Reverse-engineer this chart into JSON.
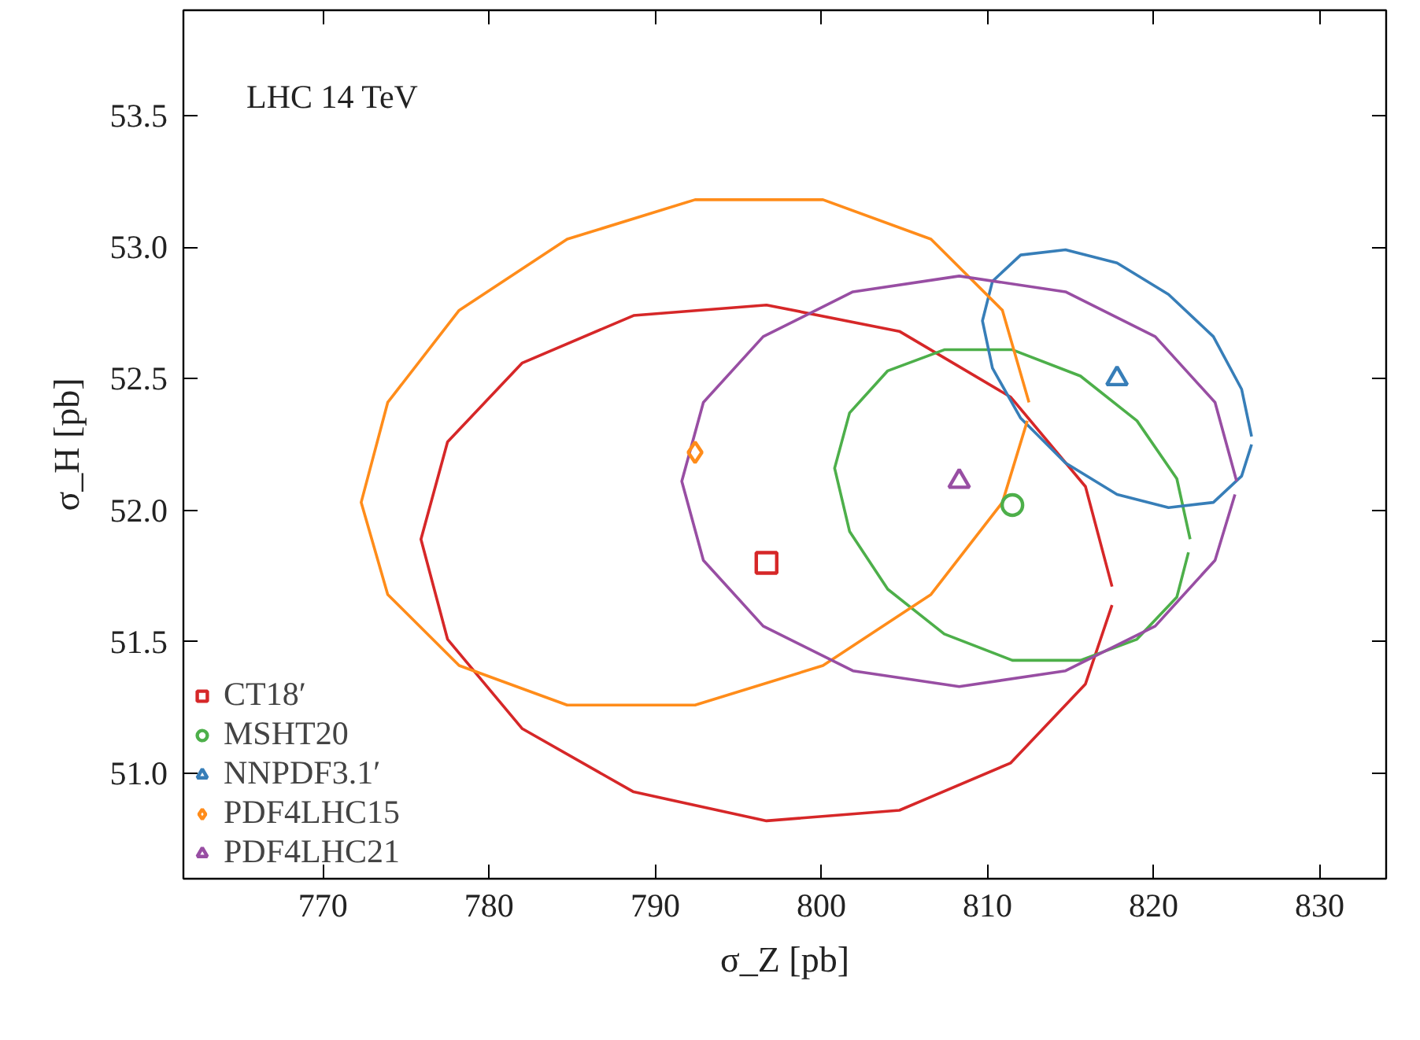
{
  "chart_data": {
    "type": "scatter",
    "xlabel": "σ_Z [pb]",
    "ylabel": "σ_H [pb]",
    "annotations": [
      "LHC 14 TeV"
    ],
    "xlim": [
      761.6,
      834
    ],
    "ylim": [
      50.6,
      53.9
    ],
    "xticks": [
      770,
      780,
      790,
      800,
      810,
      820,
      830
    ],
    "yticks": [
      {
        "value": 51,
        "label": "51.0"
      },
      {
        "value": 51.5,
        "label": "51.5"
      },
      {
        "value": 52,
        "label": "52.0"
      },
      {
        "value": 52.5,
        "label": "52.5"
      },
      {
        "value": 53,
        "label": "53.0"
      },
      {
        "value": 53.5,
        "label": "53.5"
      }
    ],
    "grid": false,
    "legend": "bottom left",
    "series": [
      {
        "type": "line",
        "color": "#d62728",
        "x": [
          817.5,
          815.9,
          811.4,
          804.7,
          796.7,
          788.7,
          782.0,
          777.5,
          775.9,
          777.5,
          782.0,
          788.7,
          796.7,
          804.7,
          811.4,
          815.9,
          817.5
        ],
        "values": [
          51.71,
          52.09,
          52.43,
          52.68,
          52.78,
          52.74,
          52.56,
          52.26,
          51.89,
          51.51,
          51.17,
          50.93,
          50.82,
          50.86,
          51.04,
          51.34,
          51.64
        ]
      },
      {
        "type": "line",
        "color": "#4daf4a",
        "x": [
          822.2,
          821.4,
          819.0,
          815.6,
          811.5,
          807.4,
          804.0,
          801.7,
          800.8,
          801.7,
          804.0,
          807.4,
          811.5,
          815.6,
          819.0,
          821.4,
          822.1
        ],
        "values": [
          51.89,
          52.12,
          52.34,
          52.51,
          52.61,
          52.61,
          52.53,
          52.37,
          52.16,
          51.92,
          51.7,
          51.53,
          51.43,
          51.43,
          51.51,
          51.67,
          51.84
        ]
      },
      {
        "type": "line",
        "color": "#377eb8",
        "x": [
          825.9,
          825.3,
          823.6,
          820.9,
          817.8,
          814.7,
          812.0,
          810.3,
          809.7,
          810.3,
          812.0,
          814.7,
          817.8,
          820.9,
          823.6,
          825.3,
          825.9
        ],
        "values": [
          52.28,
          52.46,
          52.66,
          52.82,
          52.94,
          52.99,
          52.97,
          52.87,
          52.72,
          52.54,
          52.35,
          52.18,
          52.06,
          52.01,
          52.03,
          52.13,
          52.25
        ]
      },
      {
        "type": "line",
        "color": "#ff8c1a",
        "x": [
          812.5,
          810.9,
          806.6,
          800.1,
          792.4,
          784.7,
          778.2,
          773.9,
          772.3,
          773.9,
          778.2,
          784.7,
          792.4,
          800.1,
          806.6,
          810.9,
          812.4
        ],
        "values": [
          52.41,
          52.76,
          53.03,
          53.18,
          53.18,
          53.03,
          52.76,
          52.41,
          52.03,
          51.68,
          51.41,
          51.26,
          51.26,
          51.41,
          51.68,
          52.03,
          52.34
        ]
      },
      {
        "type": "line",
        "color": "#984ea3",
        "x": [
          825.0,
          823.7,
          820.1,
          814.7,
          808.3,
          801.9,
          796.5,
          792.9,
          791.6,
          792.9,
          796.5,
          801.9,
          808.3,
          814.7,
          820.1,
          823.7,
          824.9
        ],
        "values": [
          52.11,
          52.41,
          52.66,
          52.83,
          52.89,
          52.83,
          52.66,
          52.41,
          52.11,
          51.81,
          51.56,
          51.39,
          51.33,
          51.39,
          51.56,
          51.81,
          52.06
        ]
      },
      {
        "name": "CT18′",
        "marker": "square",
        "color": "#d62728",
        "x": [
          796.7
        ],
        "values": [
          51.8
        ]
      },
      {
        "name": "MSHT20",
        "marker": "circle",
        "color": "#4daf4a",
        "x": [
          811.5
        ],
        "values": [
          52.02
        ]
      },
      {
        "name": "NNPDF3.1′",
        "marker": "triangle",
        "color": "#377eb8",
        "x": [
          817.8
        ],
        "values": [
          52.5
        ]
      },
      {
        "name": "PDF4LHC15",
        "marker": "diamond",
        "color": "#ff8c1a",
        "x": [
          792.4
        ],
        "values": [
          52.22
        ]
      },
      {
        "name": "PDF4LHC21",
        "marker": "triangle",
        "color": "#984ea3",
        "x": [
          808.3
        ],
        "values": [
          52.11
        ]
      }
    ]
  }
}
